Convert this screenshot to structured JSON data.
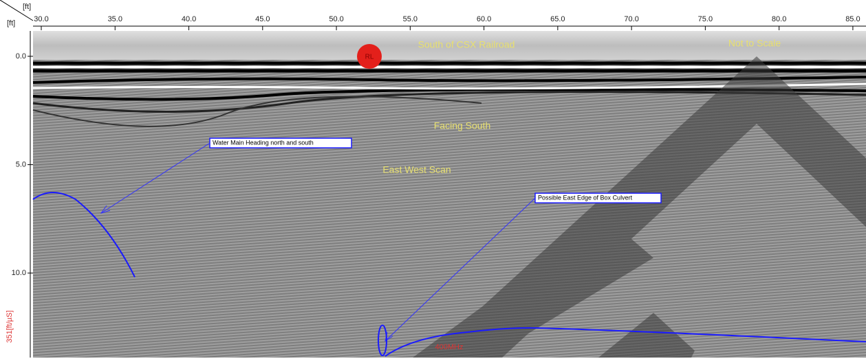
{
  "axes": {
    "x_unit": "[ft]",
    "y_unit": "[ft]",
    "velocity": "351[ft/µS]",
    "xlim": [
      29.44,
      85.89
    ],
    "ylim": [
      -1.17,
      13.9
    ],
    "xticks": [
      {
        "value": 30,
        "label": "30.0"
      },
      {
        "value": 35,
        "label": "35.0"
      },
      {
        "value": 40,
        "label": "40.0"
      },
      {
        "value": 45,
        "label": "45.0"
      },
      {
        "value": 50,
        "label": "50.0"
      },
      {
        "value": 55,
        "label": "55.0"
      },
      {
        "value": 60,
        "label": "60.0"
      },
      {
        "value": 65,
        "label": "65.0"
      },
      {
        "value": 70,
        "label": "70.0"
      },
      {
        "value": 75,
        "label": "75.0"
      },
      {
        "value": 80,
        "label": "80.0"
      },
      {
        "value": 85,
        "label": "85.0"
      }
    ],
    "yticks": [
      {
        "value": 0,
        "label": "0.0"
      },
      {
        "value": 5,
        "label": "5.0"
      },
      {
        "value": 10,
        "label": "10.0"
      }
    ]
  },
  "annotations": {
    "marker": "RL",
    "location": "South of CSX Railroad",
    "scale_note": "Not to Scale",
    "facing": "Facing South",
    "scan": "East West Scan",
    "callouts": [
      "Water Main Heading north and south",
      "Possible East Edge of Box Culvert"
    ],
    "frequency": "400MHz"
  }
}
